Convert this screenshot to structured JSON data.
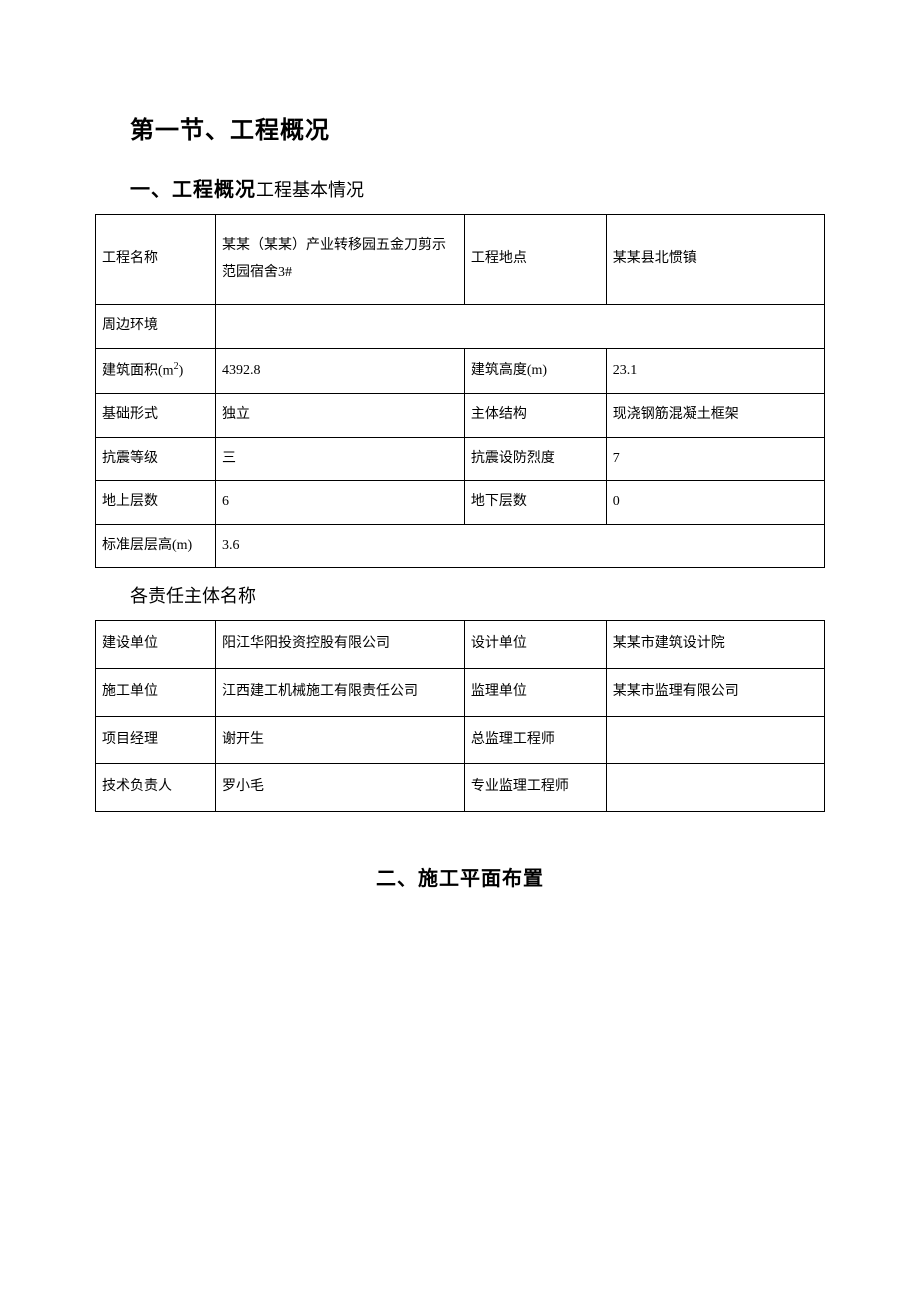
{
  "heading_h1": "第一节、工程概况",
  "heading_h2": {
    "bold": "一、工程概况",
    "normal": "工程基本情况"
  },
  "table1": {
    "r1": {
      "c1": "工程名称",
      "c2": "某某（某某）产业转移园五金刀剪示范园宿舍3#",
      "c3": "工程地点",
      "c4": "某某县北惯镇"
    },
    "r2": {
      "c1": "周边环境",
      "c2": ""
    },
    "r3": {
      "c1_before": "建筑面积(m",
      "c1_sup": "2",
      "c1_after": ")",
      "c2": "4392.8",
      "c3": "建筑高度(m)",
      "c4": "23.1"
    },
    "r4": {
      "c1": "基础形式",
      "c2": "独立",
      "c3": "主体结构",
      "c4": "现浇钢筋混凝土框架"
    },
    "r5": {
      "c1": "抗震等级",
      "c2": "三",
      "c3": "抗震设防烈度",
      "c4": "7"
    },
    "r6": {
      "c1": "地上层数",
      "c2": "6",
      "c3": "地下层数",
      "c4": "0"
    },
    "r7": {
      "c1": "标准层层高(m)",
      "c2": "3.6"
    }
  },
  "subheading": "各责任主体名称",
  "table2": {
    "r1": {
      "c1": "建设单位",
      "c2": "阳江华阳投资控股有限公司",
      "c3": "设计单位",
      "c4": "某某市建筑设计院"
    },
    "r2": {
      "c1": "施工单位",
      "c2": "江西建工机械施工有限责任公司",
      "c3": "监理单位",
      "c4": "某某市监理有限公司"
    },
    "r3": {
      "c1": "项目经理",
      "c2": "谢开生",
      "c3": "总监理工程师",
      "c4": ""
    },
    "r4": {
      "c1": "技术负责人",
      "c2": "罗小毛",
      "c3": "专业监理工程师",
      "c4": ""
    }
  },
  "centered_heading": "二、施工平面布置"
}
